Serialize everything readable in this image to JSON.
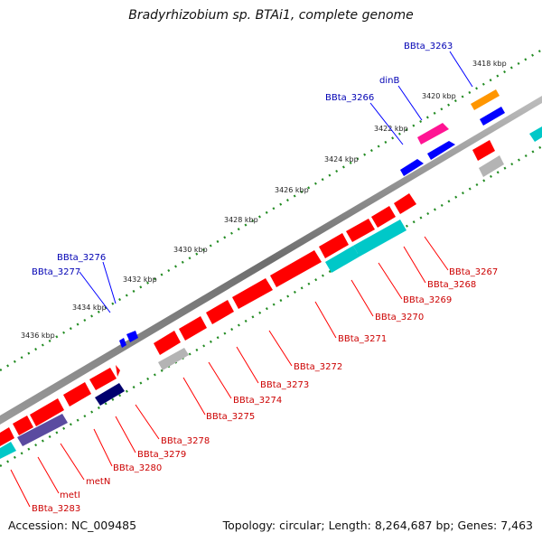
{
  "title": "Bradyrhizobium sp. BTAi1, complete genome",
  "accession": "Accession: NC_009485",
  "summary": "Topology: circular; Length: 8,264,687 bp; Genes: 7,463",
  "colors": {
    "forward_gene": "#ff0000",
    "reverse_gene": "#ff0000",
    "cyan_gene": "#00c8c8",
    "blue_gene": "#0000ff",
    "navy_gene": "#00006e",
    "purple_gene": "#5a4ba0",
    "orange_gene": "#ff9600",
    "magenta_gene": "#ff1493",
    "gray_gene": "#b4b4b4",
    "backbone": "#808080",
    "tick": "#228b22",
    "forward_label": "#0000b4",
    "reverse_label": "#cc0000"
  },
  "scale_labels": [
    "3418 kbp",
    "3420 kbp",
    "3422 kbp",
    "3424 kbp",
    "3426 kbp",
    "3428 kbp",
    "3430 kbp",
    "3432 kbp",
    "3434 kbp",
    "3436 kbp"
  ],
  "forward_labels": [
    {
      "text": "BBta_3263"
    },
    {
      "text": "dinB"
    },
    {
      "text": "BBta_3266"
    },
    {
      "text": "BBta_3276"
    },
    {
      "text": "BBta_3277"
    }
  ],
  "reverse_labels": [
    {
      "text": "BBta_3267"
    },
    {
      "text": "BBta_3268"
    },
    {
      "text": "BBta_3269"
    },
    {
      "text": "BBta_3270"
    },
    {
      "text": "BBta_3271"
    },
    {
      "text": "BBta_3272"
    },
    {
      "text": "BBta_3273"
    },
    {
      "text": "BBta_3274"
    },
    {
      "text": "BBta_3275"
    },
    {
      "text": "BBta_3278"
    },
    {
      "text": "BBta_3279"
    },
    {
      "text": "BBta_3280"
    },
    {
      "text": "metN"
    },
    {
      "text": "metI"
    },
    {
      "text": "BBta_3283"
    }
  ]
}
